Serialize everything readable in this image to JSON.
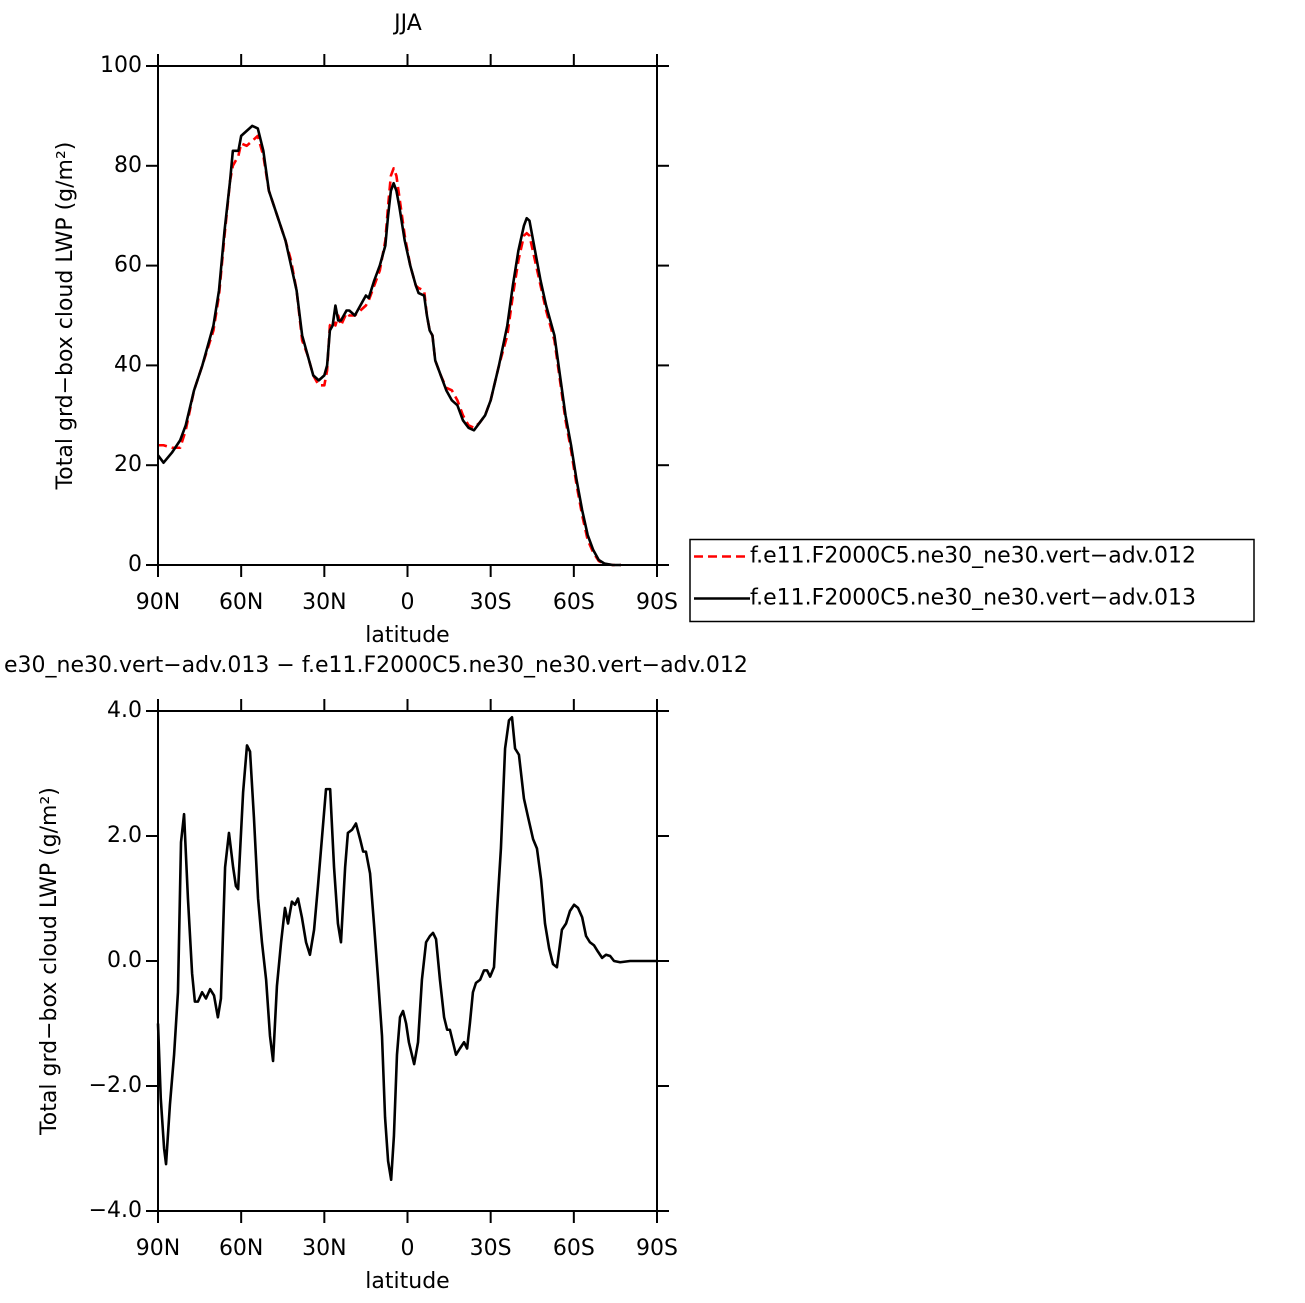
{
  "chart_data": [
    {
      "type": "line",
      "title": "JJA",
      "xlabel": "latitude",
      "ylabel": "Total grd−box cloud LWP (g/m²)",
      "x": [
        90,
        88,
        85,
        82,
        80,
        77,
        74,
        70,
        68,
        66,
        64,
        63,
        61,
        60,
        58,
        56,
        54,
        52,
        50,
        47,
        44,
        42,
        40,
        38,
        36,
        34,
        32,
        30,
        29,
        28,
        27,
        26,
        25,
        24,
        22,
        21,
        19,
        17,
        15,
        14,
        12,
        10,
        8,
        7,
        6,
        5,
        4,
        3,
        1,
        -1,
        -3,
        -4,
        -6,
        -7,
        -8,
        -9,
        -10,
        -12,
        -14,
        -16,
        -18,
        -20,
        -22,
        -24,
        -26,
        -28,
        -30,
        -33,
        -36,
        -38,
        -40,
        -42,
        -43,
        -44,
        -46,
        -48,
        -50,
        -53,
        -55,
        -57,
        -59,
        -61,
        -63,
        -65,
        -67,
        -69,
        -71,
        -74,
        -77
      ],
      "series": [
        {
          "name": "f.e11.F2000C5.ne30_ne30.vert−adv.012",
          "color": "#ff0000",
          "style": "dashed",
          "values": [
            24,
            24,
            23.5,
            23.5,
            27,
            35,
            40,
            47,
            54,
            66,
            77,
            80,
            82,
            84.5,
            84,
            85,
            86,
            82,
            75,
            70,
            65,
            61,
            55,
            45,
            42,
            38,
            36,
            36,
            39,
            48,
            49,
            48,
            50,
            48,
            50.5,
            50,
            50,
            51,
            52,
            53,
            56,
            59,
            65,
            72,
            78,
            79.5,
            78,
            74,
            66,
            60,
            56,
            55.5,
            55,
            50,
            47,
            46,
            41,
            38,
            35.5,
            35,
            33,
            30,
            28,
            27.5,
            28.5,
            30,
            33,
            40,
            46,
            54,
            61,
            66,
            66.5,
            66,
            61,
            56,
            51,
            45,
            37,
            29,
            23,
            16,
            10,
            5,
            2.5,
            0.8,
            0.2,
            0,
            0
          ]
        },
        {
          "name": "f.e11.F2000C5.ne30_ne30.vert−adv.013",
          "color": "#000000",
          "style": "solid",
          "values": [
            22,
            20.5,
            22.5,
            25,
            28,
            35,
            40,
            48,
            55,
            67,
            77,
            83,
            83,
            86,
            87,
            88,
            87.5,
            83,
            75,
            70,
            65,
            60,
            55,
            46,
            42,
            38,
            37,
            38,
            40,
            47,
            48,
            52,
            49,
            49,
            51,
            51,
            50,
            52,
            54,
            53.5,
            57,
            60,
            64,
            70,
            75,
            76.5,
            75,
            72,
            65,
            60,
            56,
            54.5,
            54,
            50,
            47,
            46,
            41,
            38,
            35,
            33,
            32,
            29,
            27.5,
            27,
            28.5,
            30,
            33,
            40,
            48,
            56,
            63,
            68,
            69.5,
            69,
            63,
            57,
            52,
            46,
            38,
            30,
            24,
            17,
            11,
            6,
            3,
            1,
            0.3,
            0,
            0
          ]
        }
      ],
      "xlim": [
        90,
        -90
      ],
      "xticks": [
        {
          "value": 90,
          "label": "90N"
        },
        {
          "value": 60,
          "label": "60N"
        },
        {
          "value": 30,
          "label": "30N"
        },
        0,
        {
          "value": -30,
          "label": "30S"
        },
        {
          "value": -60,
          "label": "60S"
        },
        {
          "value": -90,
          "label": "90S"
        }
      ],
      "ylim": [
        0,
        100
      ],
      "yticks": [
        0,
        20,
        40,
        60,
        80,
        100
      ],
      "legend": "right"
    },
    {
      "type": "line",
      "title": "e30_ne30.vert−adv.013 − f.e11.F2000C5.ne30_ne30.vert−adv.012",
      "xlabel": "latitude",
      "ylabel": "Total grd−box cloud LWP (g/m²)",
      "x": [
        90,
        89,
        87.8,
        87.1,
        85.7,
        84.2,
        82.8,
        81.7,
        80.6,
        79.2,
        77.7,
        76.7,
        75.6,
        74.1,
        72.7,
        71.2,
        69.8,
        68.4,
        67.3,
        65.8,
        64.4,
        62.9,
        61.9,
        61.1,
        59.3,
        57.9,
        56.8,
        55.4,
        53.9,
        52.5,
        51,
        49.6,
        48.5,
        47.1,
        45.6,
        44.2,
        43.1,
        41.7,
        40.6,
        39.5,
        38.1,
        36.6,
        35.2,
        33.7,
        32.3,
        30.8,
        29.4,
        27.9,
        26.5,
        25.1,
        24,
        22.5,
        21.5,
        20,
        18.6,
        17.1,
        16,
        15,
        13.5,
        12.1,
        10.6,
        9.2,
        8.1,
        7,
        5.9,
        4.9,
        3.8,
        2.7,
        1.6,
        0.5,
        -0.5,
        -2.4,
        -3.8,
        -5.2,
        -6.7,
        -8.1,
        -9.2,
        -10.3,
        -11.7,
        -13.2,
        -14.3,
        -15.3,
        -16.4,
        -17.5,
        -18.9,
        -20.4,
        -21.5,
        -22.5,
        -23.6,
        -24.7,
        -26.2,
        -27.6,
        -28.7,
        -29.8,
        -31.2,
        -32.3,
        -33.7,
        -35.2,
        -36.6,
        -37.7,
        -38.8,
        -40.2,
        -42,
        -43.5,
        -45.3,
        -46.7,
        -48.2,
        -49.6,
        -51.1,
        -52.5,
        -53.9,
        -55.7,
        -57.2,
        -58.6,
        -60.1,
        -61.5,
        -63,
        -64.4,
        -65.8,
        -67.3,
        -68.7,
        -70.2,
        -71.6,
        -73.1,
        -74.5,
        -76.7,
        -80.3,
        -90
      ],
      "values": [
        -1,
        -2.2,
        -3,
        -3.25,
        -2.3,
        -1.5,
        -0.5,
        1.9,
        2.35,
        1,
        -0.2,
        -0.65,
        -0.65,
        -0.5,
        -0.6,
        -0.45,
        -0.55,
        -0.9,
        -0.6,
        1.5,
        2.05,
        1.5,
        1.2,
        1.15,
        2.7,
        3.45,
        3.35,
        2.3,
        1,
        0.3,
        -0.3,
        -1.2,
        -1.6,
        -0.4,
        0.3,
        0.85,
        0.6,
        0.95,
        0.9,
        1,
        0.7,
        0.3,
        0.1,
        0.5,
        1.2,
        2,
        2.75,
        2.75,
        1.5,
        0.6,
        0.3,
        1.5,
        2.05,
        2.1,
        2.2,
        1.95,
        1.75,
        1.75,
        1.4,
        0.6,
        -0.3,
        -1.2,
        -2.5,
        -3.2,
        -3.5,
        -2.8,
        -1.5,
        -0.9,
        -0.8,
        -1,
        -1.3,
        -1.65,
        -1.3,
        -0.3,
        0.3,
        0.4,
        0.45,
        0.35,
        -0.3,
        -0.9,
        -1.1,
        -1.1,
        -1.3,
        -1.5,
        -1.4,
        -1.3,
        -1.4,
        -1,
        -0.5,
        -0.35,
        -0.3,
        -0.15,
        -0.15,
        -0.25,
        -0.1,
        0.8,
        1.8,
        3.4,
        3.85,
        3.9,
        3.4,
        3.3,
        2.6,
        2.3,
        1.95,
        1.8,
        1.3,
        0.6,
        0.2,
        -0.05,
        -0.1,
        0.5,
        0.6,
        0.8,
        0.9,
        0.85,
        0.7,
        0.4,
        0.3,
        0.25,
        0.15,
        0.05,
        0.1,
        0.08,
        0,
        -0.02,
        0,
        0
      ],
      "color": "#000000",
      "xlim": [
        90,
        -90
      ],
      "xticks": [
        {
          "value": 90,
          "label": "90N"
        },
        {
          "value": 60,
          "label": "60N"
        },
        {
          "value": 30,
          "label": "30N"
        },
        0,
        {
          "value": -30,
          "label": "30S"
        },
        {
          "value": -60,
          "label": "60S"
        },
        {
          "value": -90,
          "label": "90S"
        }
      ],
      "ylim": [
        -4,
        4
      ],
      "yticks": [
        {
          "value": -4,
          "label": "−4.0"
        },
        {
          "value": -2,
          "label": "−2.0"
        },
        {
          "value": 0,
          "label": "0.0"
        },
        {
          "value": 2,
          "label": "2.0"
        },
        {
          "value": 4,
          "label": "4.0"
        }
      ]
    }
  ]
}
